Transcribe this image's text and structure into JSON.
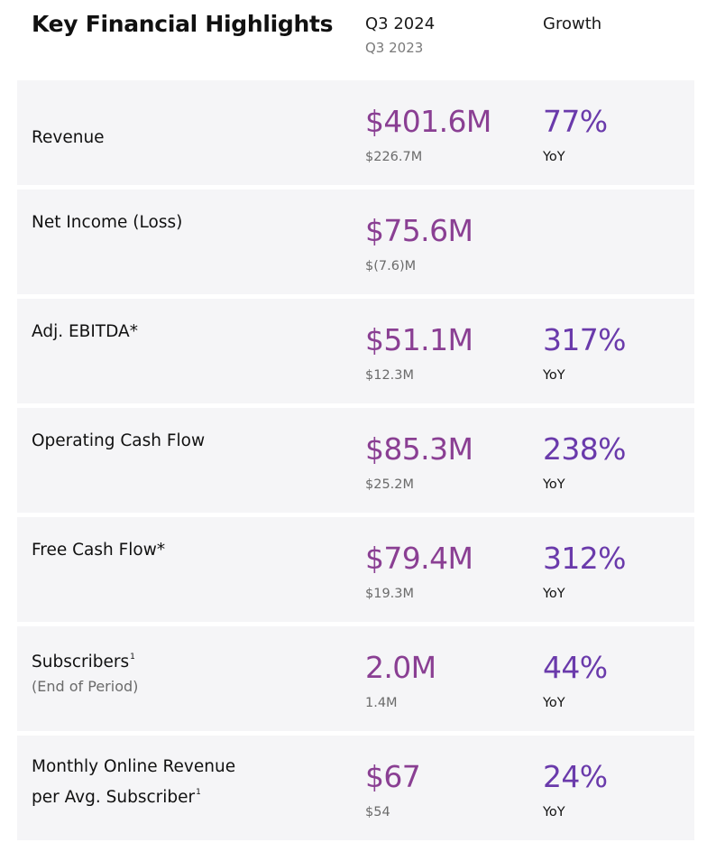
{
  "header": {
    "title": "Key Financial Highlights",
    "current_period": "Q3 2024",
    "prior_period": "Q3 2023",
    "growth_label": "Growth"
  },
  "rows": [
    {
      "label": "Revenue",
      "value": "$401.6M",
      "prior": "$226.7M",
      "growth": "77%",
      "growth_unit": "YoY"
    },
    {
      "label": "Net Income (Loss)",
      "value": "$75.6M",
      "prior": "$(7.6)M",
      "growth": "",
      "growth_unit": ""
    },
    {
      "label": "Adj. EBITDA*",
      "value": "$51.1M",
      "prior": "$12.3M",
      "growth": "317%",
      "growth_unit": "YoY"
    },
    {
      "label": "Operating Cash Flow",
      "value": "$85.3M",
      "prior": "$25.2M",
      "growth": "238%",
      "growth_unit": "YoY"
    },
    {
      "label": "Free Cash Flow*",
      "value": "$79.4M",
      "prior": "$19.3M",
      "growth": "312%",
      "growth_unit": "YoY"
    },
    {
      "label": "Subscribers",
      "label_note": "1",
      "sublabel": "(End of Period)",
      "value": "2.0M",
      "prior": "1.4M",
      "growth": "44%",
      "growth_unit": "YoY"
    },
    {
      "label_line1": "Monthly Online Revenue",
      "label_line2": "per Avg. Subscriber",
      "label_note": "1",
      "value": "$67",
      "prior": "$54",
      "growth": "24%",
      "growth_unit": "YoY"
    }
  ]
}
